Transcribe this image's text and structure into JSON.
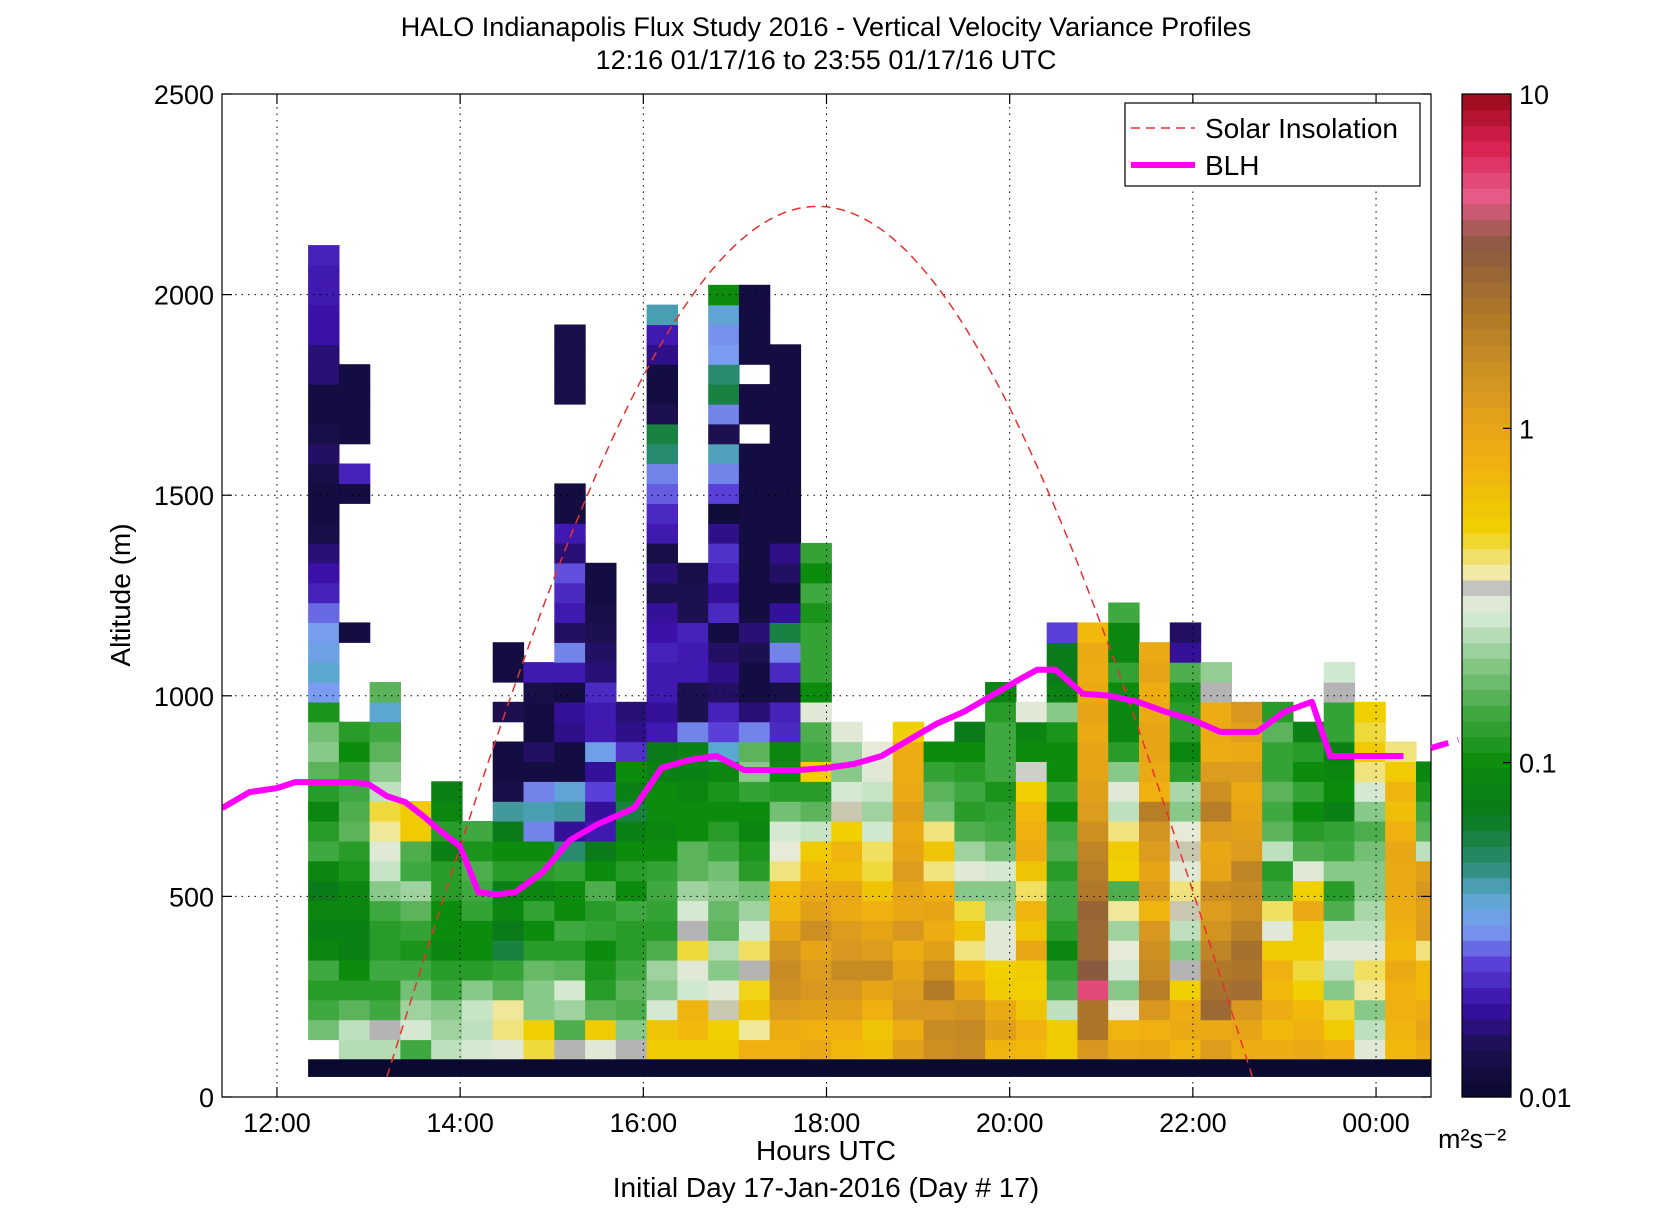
{
  "chart_data": {
    "type": "heatmap",
    "title": "HALO Indianapolis Flux Study 2016 - Vertical Velocity Variance Profiles",
    "subtitle": "12:16 01/17/16 to 23:55 01/17/16  UTC",
    "xlabel": "Hours UTC",
    "xlabel2": "Initial Day 17-Jan-2016 (Day # 17)",
    "ylabel": "Altitude (m)",
    "xlim": [
      11.4,
      24.6
    ],
    "ylim": [
      0,
      2500
    ],
    "grid": true,
    "x_ticks": [
      {
        "value": 12,
        "label": "12:00"
      },
      {
        "value": 14,
        "label": "14:00"
      },
      {
        "value": 16,
        "label": "16:00"
      },
      {
        "value": 18,
        "label": "18:00"
      },
      {
        "value": 20,
        "label": "20:00"
      },
      {
        "value": 22,
        "label": "22:00"
      },
      {
        "value": 24,
        "label": "00:00"
      }
    ],
    "y_ticks": [
      {
        "value": 0,
        "label": "0"
      },
      {
        "value": 500,
        "label": "500"
      },
      {
        "value": 1000,
        "label": "1000"
      },
      {
        "value": 1500,
        "label": "1500"
      },
      {
        "value": 2000,
        "label": "2000"
      },
      {
        "value": 2500,
        "label": "2500"
      }
    ],
    "colorbar": {
      "scale": "log",
      "min": 0.01,
      "max": 10,
      "unit": "m²s⁻²",
      "ticks": [
        {
          "value": 0.01,
          "label": "0.01"
        },
        {
          "value": 0.1,
          "label": "0.1"
        },
        {
          "value": 1,
          "label": "1"
        },
        {
          "value": 10,
          "label": "10"
        }
      ],
      "stops": [
        {
          "v": 0.01,
          "color": "#0a0a30"
        },
        {
          "v": 0.014,
          "color": "#1c1050"
        },
        {
          "v": 0.019,
          "color": "#3a10a8"
        },
        {
          "v": 0.025,
          "color": "#5a40d8"
        },
        {
          "v": 0.032,
          "color": "#7a9cf0"
        },
        {
          "v": 0.04,
          "color": "#5aa8d0"
        },
        {
          "v": 0.05,
          "color": "#2a8a70"
        },
        {
          "v": 0.07,
          "color": "#0a7a1a"
        },
        {
          "v": 0.1,
          "color": "#0c8c0c"
        },
        {
          "v": 0.14,
          "color": "#40a840"
        },
        {
          "v": 0.2,
          "color": "#88c888"
        },
        {
          "v": 0.27,
          "color": "#d0e8d0"
        },
        {
          "v": 0.32,
          "color": "#e8ead8"
        },
        {
          "v": 0.34,
          "color": "#b4b4b4"
        },
        {
          "v": 0.37,
          "color": "#f0eaa8"
        },
        {
          "v": 0.5,
          "color": "#f0d000"
        },
        {
          "v": 0.8,
          "color": "#f0b010"
        },
        {
          "v": 1.3,
          "color": "#d89820"
        },
        {
          "v": 2.2,
          "color": "#b07828"
        },
        {
          "v": 3.5,
          "color": "#8a5a40"
        },
        {
          "v": 5.0,
          "color": "#e85a8a"
        },
        {
          "v": 7.0,
          "color": "#d82050"
        },
        {
          "v": 10,
          "color": "#9a0a1a"
        }
      ]
    },
    "grid_spec": {
      "x0": 12.34,
      "dx": 0.336,
      "y0": 94,
      "dy": 49.5
    },
    "columns": [
      [
        null,
        0.18,
        0.14,
        0.12,
        0.14,
        0.09,
        0.08,
        0.09,
        0.07,
        0.09,
        0.14,
        0.12,
        0.09,
        0.12,
        0.16,
        0.2,
        0.18,
        0.11,
        0.032,
        0.04,
        0.035,
        0.033,
        0.028,
        0.021,
        0.019,
        0.016,
        0.013,
        0.012,
        0.012,
        0.013,
        0.015,
        0.013,
        0.012,
        0.012,
        0.016,
        0.016,
        0.019,
        0.019,
        0.02,
        0.02,
        0.021
      ],
      [
        0.24,
        0.25,
        0.16,
        0.12,
        0.1,
        0.08,
        0.08,
        0.09,
        0.09,
        0.11,
        0.12,
        0.16,
        0.15,
        0.14,
        0.13,
        0.1,
        0.12,
        null,
        null,
        null,
        null,
        0.012,
        null,
        null,
        null,
        null,
        null,
        null,
        0.012,
        0.021,
        null,
        0.012,
        0.012,
        0.012,
        0.012
      ],
      [
        0.24,
        0.34,
        0.14,
        0.12,
        0.14,
        0.12,
        0.12,
        0.14,
        0.2,
        0.26,
        0.3,
        0.38,
        0.45,
        0.25,
        0.2,
        0.16,
        0.14,
        0.04,
        0.16
      ],
      [
        0.14,
        0.28,
        0.22,
        0.18,
        0.14,
        0.11,
        0.13,
        0.16,
        0.22,
        0.14,
        0.15,
        0.55,
        0.55
      ],
      [
        0.25,
        0.22,
        0.2,
        0.14,
        0.12,
        0.09,
        0.1,
        0.1,
        0.12,
        0.12,
        0.08,
        0.12,
        0.09,
        0.08
      ],
      [
        0.28,
        0.25,
        0.26,
        0.2,
        0.12,
        0.1,
        0.1,
        0.13,
        0.14,
        0.15,
        0.11,
        0.14
      ],
      [
        0.3,
        0.4,
        0.38,
        0.16,
        0.13,
        0.06,
        0.07,
        0.09,
        0.08,
        0.12,
        0.1,
        0.07,
        0.045,
        0.013,
        0.012,
        0.012,
        null,
        0.014,
        null,
        0.012,
        0.012
      ],
      [
        0.45,
        0.5,
        0.2,
        0.2,
        0.17,
        0.12,
        0.1,
        0.13,
        0.09,
        0.12,
        0.1,
        0.03,
        0.043,
        0.03,
        0.012,
        0.015,
        0.012,
        0.012,
        0.013,
        0.02
      ],
      [
        0.34,
        0.15,
        0.22,
        0.28,
        0.16,
        0.12,
        0.14,
        0.1,
        0.1,
        0.13,
        0.05,
        0.018,
        0.045,
        0.038,
        0.012,
        0.012,
        0.017,
        0.018,
        0.012,
        0.02,
        0.03,
        0.015,
        0.02,
        0.022,
        0.026,
        0.016,
        0.02,
        0.012,
        0.012,
        null,
        null,
        null,
        null,
        0.013,
        0.013,
        0.013,
        0.013
      ],
      [
        0.3,
        0.55,
        0.16,
        0.12,
        0.11,
        0.1,
        0.13,
        0.12,
        0.15,
        0.1,
        0.07,
        0.02,
        0.018,
        0.025,
        0.018,
        0.034,
        0.02,
        0.02,
        0.022,
        0.016,
        0.015,
        0.014,
        0.013,
        0.012,
        0.012
      ],
      [
        0.34,
        0.2,
        0.15,
        0.16,
        0.14,
        0.12,
        0.12,
        0.14,
        0.1,
        0.12,
        0.1,
        0.08,
        0.06,
        0.08,
        0.1,
        0.023,
        0.017,
        0.016
      ],
      [
        0.55,
        0.6,
        0.28,
        0.2,
        0.22,
        0.15,
        0.12,
        0.13,
        0.14,
        0.13,
        0.1,
        0.09,
        0.1,
        0.1,
        0.08,
        0.07,
        0.02,
        0.018,
        0.02,
        0.02,
        0.021,
        0.019,
        0.018,
        0.014,
        0.016,
        0.013,
        0.02,
        0.022,
        0.027,
        0.03,
        0.05,
        0.06,
        0.014,
        0.012,
        0.012,
        0.017,
        0.02,
        0.043
      ],
      [
        0.55,
        0.7,
        0.75,
        0.27,
        0.3,
        0.45,
        0.34,
        0.28,
        0.22,
        0.16,
        0.16,
        0.1,
        0.1,
        0.09,
        0.08,
        0.08,
        0.03,
        0.014,
        0.014,
        0.02,
        0.02,
        0.021,
        0.014,
        0.014,
        0.013
      ],
      [
        0.55,
        0.5,
        0.35,
        0.3,
        0.2,
        0.24,
        0.16,
        0.17,
        0.2,
        0.18,
        0.14,
        0.12,
        0.1,
        0.11,
        0.09,
        0.04,
        0.025,
        0.021,
        0.015,
        0.017,
        0.015,
        0.012,
        0.022,
        0.018,
        0.021,
        0.023,
        0.017,
        0.011,
        0.025,
        0.03,
        0.042,
        0.014,
        0.03,
        0.06,
        0.05,
        0.032,
        0.031,
        0.038,
        0.1
      ],
      [
        0.8,
        0.38,
        0.6,
        0.48,
        0.34,
        0.42,
        0.28,
        0.22,
        0.18,
        0.12,
        0.11,
        0.09,
        0.1,
        0.13,
        0.2,
        0.16,
        0.03,
        0.016,
        0.012,
        0.012,
        0.014,
        0.016,
        0.012,
        0.012,
        0.012,
        0.012,
        0.012,
        0.012,
        0.012,
        0.012,
        0.012,
        null,
        0.012,
        0.012,
        null,
        0.012,
        0.012,
        0.012,
        0.012
      ],
      [
        0.8,
        0.85,
        1.2,
        1.5,
        1.6,
        1.4,
        1.0,
        0.75,
        0.7,
        0.4,
        0.32,
        0.28,
        0.18,
        0.12,
        0.1,
        0.09,
        0.022,
        0.021,
        0.013,
        0.022,
        0.03,
        0.06,
        0.018,
        0.012,
        0.015,
        0.017,
        0.012,
        0.012,
        0.012,
        0.012,
        0.012,
        0.012,
        0.012,
        0.012,
        0.012,
        0.012
      ],
      [
        0.9,
        0.8,
        1.1,
        1.3,
        1.2,
        1.0,
        1.5,
        1.1,
        0.9,
        0.7,
        0.55,
        0.26,
        0.16,
        0.12,
        0.5,
        0.14,
        0.15,
        0.3,
        0.1,
        0.13,
        0.13,
        0.13,
        0.11,
        0.14,
        0.1,
        0.13
      ],
      [
        0.7,
        0.8,
        1.1,
        1.3,
        1.6,
        1.3,
        1.2,
        0.9,
        0.95,
        0.65,
        0.75,
        0.5,
        0.35,
        0.28,
        0.2,
        0.22,
        0.3
      ],
      [
        0.65,
        0.6,
        0.8,
        1.0,
        1.6,
        1.2,
        1.0,
        0.8,
        0.6,
        0.45,
        0.42,
        0.27,
        0.22,
        0.26,
        0.3,
        0.32
      ],
      [
        1.1,
        0.85,
        1.3,
        1.2,
        1.0,
        0.85,
        1.3,
        0.95,
        1.0,
        1.2,
        1.0,
        0.9,
        1.1,
        0.9,
        0.85,
        0.85,
        0.5
      ],
      [
        1.5,
        1.6,
        1.3,
        2.1,
        1.5,
        1.1,
        0.85,
        1.0,
        0.8,
        0.4,
        0.6,
        0.4,
        0.18,
        0.16,
        0.13,
        0.1
      ],
      [
        1.6,
        1.7,
        1.4,
        1.0,
        0.7,
        0.4,
        0.6,
        0.45,
        0.2,
        0.3,
        0.22,
        0.15,
        0.12,
        0.14,
        0.12,
        0.1,
        0.07
      ],
      [
        0.75,
        1.1,
        0.9,
        0.55,
        0.5,
        0.3,
        0.3,
        0.22,
        0.2,
        0.28,
        0.18,
        0.14,
        0.13,
        0.11,
        0.14,
        0.14,
        0.14,
        0.12,
        0.085
      ],
      [
        0.7,
        0.8,
        0.6,
        0.5,
        0.55,
        0.95,
        0.6,
        0.75,
        0.42,
        0.6,
        0.85,
        0.8,
        0.7,
        0.5,
        0.33,
        0.1,
        0.085,
        0.3
      ],
      [
        0.55,
        0.55,
        0.25,
        0.15,
        0.13,
        0.09,
        0.12,
        0.14,
        0.14,
        0.12,
        0.15,
        0.14,
        0.1,
        0.13,
        0.1,
        0.1,
        0.11,
        0.2,
        0.08,
        0.07,
        0.07,
        0.025
      ],
      [
        1.3,
        2.3,
        2.3,
        5.5,
        3.5,
        2.8,
        2.8,
        3.0,
        2.2,
        2.0,
        1.8,
        1.5,
        1.2,
        1.1,
        1.0,
        1.0,
        0.9,
        1.0,
        0.9,
        0.85,
        0.9,
        0.7
      ],
      [
        0.9,
        0.75,
        0.32,
        0.2,
        0.28,
        0.32,
        0.22,
        0.38,
        0.15,
        0.5,
        0.55,
        0.4,
        0.25,
        0.3,
        0.2,
        0.12,
        0.09,
        0.09,
        0.1,
        0.13,
        0.09,
        0.09,
        0.14
      ],
      [
        0.95,
        0.8,
        1.3,
        2.0,
        1.6,
        1.5,
        1.3,
        0.75,
        1.2,
        1.0,
        1.2,
        1.4,
        2.0,
        0.8,
        0.9,
        1.0,
        1.0,
        0.9,
        0.85,
        1.0,
        0.9
      ],
      [
        0.75,
        0.9,
        0.85,
        0.5,
        0.34,
        0.2,
        0.25,
        0.35,
        0.4,
        0.3,
        0.35,
        0.32,
        0.2,
        0.23,
        0.12,
        0.09,
        0.12,
        0.12,
        0.11,
        0.15,
        0.018,
        0.015
      ],
      [
        1.2,
        0.9,
        2.8,
        2.5,
        2.2,
        1.8,
        1.4,
        1.2,
        1.5,
        1.0,
        0.95,
        1.2,
        2.0,
        1.5,
        1.2,
        0.85,
        0.9,
        0.85,
        0.34,
        0.21
      ],
      [
        0.85,
        1.0,
        1.3,
        2.6,
        2.3,
        2.5,
        1.9,
        1.5,
        1.6,
        1.8,
        1.2,
        1.1,
        1.0,
        0.9,
        1.2,
        0.9,
        1.1,
        1.3
      ],
      [
        0.85,
        0.7,
        0.85,
        0.7,
        0.8,
        0.55,
        0.3,
        0.42,
        0.14,
        0.12,
        0.25,
        0.16,
        0.14,
        0.16,
        0.13,
        0.13,
        0.16,
        0.12
      ],
      [
        0.9,
        0.8,
        0.7,
        0.5,
        0.45,
        0.55,
        0.55,
        0.9,
        0.5,
        0.3,
        0.15,
        0.12,
        0.1,
        0.13,
        0.1,
        0.12,
        0.08
      ],
      [
        0.8,
        0.55,
        0.45,
        0.2,
        0.25,
        0.3,
        0.25,
        0.15,
        0.12,
        0.2,
        0.14,
        0.13,
        0.08,
        0.1,
        0.09,
        0.08,
        0.13,
        0.13,
        0.34,
        0.27
      ],
      [
        0.3,
        0.25,
        0.2,
        0.38,
        0.42,
        0.3,
        0.25,
        0.23,
        0.2,
        0.2,
        0.18,
        0.15,
        0.2,
        0.28,
        0.4,
        0.55,
        0.45,
        0.5
      ],
      [
        0.7,
        0.75,
        0.8,
        0.8,
        0.9,
        0.7,
        0.8,
        0.85,
        0.9,
        0.9,
        0.95,
        0.8,
        0.65,
        0.75,
        0.55,
        0.4
      ],
      [
        0.85,
        1.0,
        0.85,
        0.7,
        0.7,
        0.4,
        1.2,
        1.1,
        1.3,
        1.1,
        0.25,
        0.16,
        0.14,
        0.11,
        0.09
      ]
    ],
    "blh": {
      "name": "BLH",
      "color": "#ff00ff",
      "x": [
        11.4,
        11.7,
        12.0,
        12.2,
        12.5,
        12.8,
        13.0,
        13.2,
        13.4,
        13.6,
        13.8,
        14.0,
        14.2,
        14.4,
        14.6,
        14.9,
        15.2,
        15.5,
        15.7,
        15.9,
        16.2,
        16.5,
        16.8,
        17.1,
        17.4,
        17.7,
        18.0,
        18.3,
        18.6,
        18.9,
        19.2,
        19.5,
        19.8,
        20.1,
        20.3,
        20.5,
        20.8,
        21.1,
        21.4,
        21.7,
        22.0,
        22.3,
        22.5,
        22.7,
        23.0,
        23.3,
        23.5,
        23.8,
        24.1,
        24.3
      ],
      "y": [
        720,
        760,
        770,
        785,
        785,
        785,
        780,
        750,
        735,
        700,
        660,
        625,
        510,
        505,
        510,
        560,
        640,
        680,
        700,
        720,
        820,
        840,
        850,
        815,
        815,
        815,
        820,
        830,
        850,
        890,
        930,
        960,
        1000,
        1040,
        1065,
        1065,
        1005,
        1000,
        985,
        960,
        940,
        910,
        910,
        910,
        960,
        985,
        850,
        850,
        850,
        850
      ],
      "extension_x": [
        24.6,
        24.9
      ],
      "extension_y": [
        870,
        890
      ]
    },
    "solar": {
      "name": "Solar Insolation",
      "color": "#e83030",
      "x_start": 13.2,
      "x_peak": 17.9,
      "x_end": 22.65,
      "y_peak": 2220,
      "y_base": 50
    },
    "legend": {
      "position": "top-right",
      "items": [
        {
          "label": "Solar Insolation",
          "style": "dashed",
          "color": "#e83030"
        },
        {
          "label": "BLH",
          "style": "solid",
          "color": "#ff00ff"
        }
      ]
    },
    "baseline_band": {
      "color": "#0a0a30",
      "y_min": 50,
      "y_max": 94
    }
  }
}
